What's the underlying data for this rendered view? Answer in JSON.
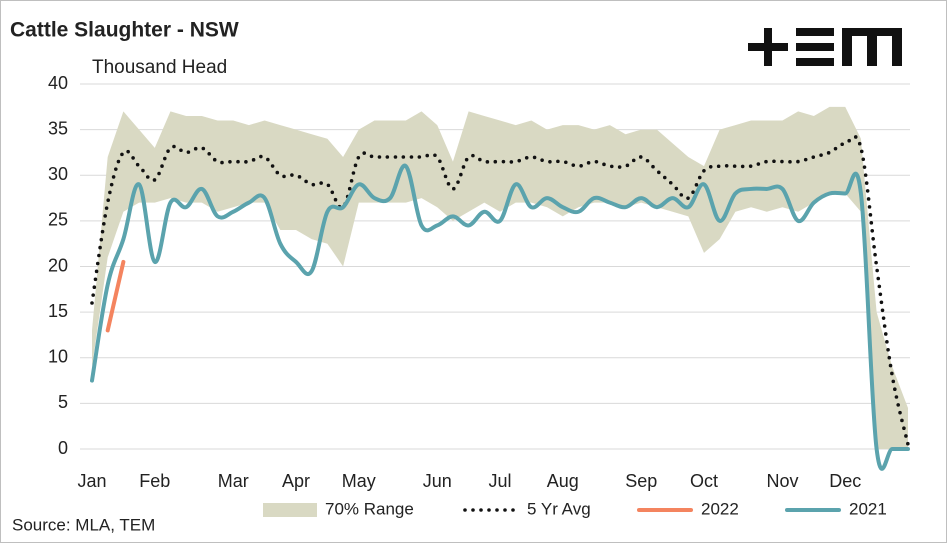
{
  "chart_data": {
    "type": "line",
    "title": "Cattle Slaughter - NSW",
    "y_label": "Thousand Head",
    "source": "Source: MLA, TEM",
    "categories": [
      "Jan",
      null,
      null,
      null,
      "Feb",
      null,
      null,
      null,
      null,
      "Mar",
      null,
      null,
      null,
      "Apr",
      null,
      null,
      null,
      "May",
      null,
      null,
      null,
      null,
      "Jun",
      null,
      null,
      null,
      "Jul",
      null,
      null,
      null,
      "Aug",
      null,
      null,
      null,
      null,
      "Sep",
      null,
      null,
      null,
      "Oct",
      null,
      null,
      null,
      null,
      "Nov",
      null,
      null,
      null,
      "Dec",
      null,
      null,
      null,
      null
    ],
    "ylim": [
      0,
      40
    ],
    "yticks": [
      0,
      5,
      10,
      15,
      20,
      25,
      30,
      35,
      40
    ],
    "grid": true,
    "series": [
      {
        "name": "70% Range",
        "type": "range",
        "color": "#d9d9c3",
        "upper": [
          13,
          32,
          37,
          35,
          33,
          37,
          36.5,
          36.5,
          36,
          36,
          35.5,
          36,
          35.5,
          35,
          34.5,
          34,
          32,
          35,
          36,
          36,
          36,
          37,
          35.5,
          31.5,
          37,
          36.5,
          36,
          35.5,
          36,
          35,
          35.5,
          35.5,
          35,
          35.5,
          34.5,
          35,
          35,
          33.5,
          32,
          31,
          35,
          35.5,
          36,
          36,
          36,
          37,
          36.5,
          37.5,
          37.5,
          34,
          15,
          9,
          4.5
        ],
        "lower": [
          9,
          21,
          26,
          27,
          27,
          27.5,
          27,
          27,
          26,
          26.5,
          27,
          27,
          24,
          24,
          23,
          22.5,
          20,
          27,
          27,
          27,
          27,
          27.5,
          26.5,
          25,
          26,
          27,
          26,
          27,
          27,
          26.5,
          25.5,
          26.5,
          27,
          27,
          26.5,
          27,
          26.5,
          26,
          25.5,
          21.5,
          23,
          26,
          26.5,
          26,
          26.5,
          26,
          27,
          28,
          28,
          26,
          0,
          0,
          0
        ]
      },
      {
        "name": "5 Yr Avg",
        "type": "dotted",
        "color": "#111111",
        "values": [
          16,
          27,
          32.5,
          31,
          29.5,
          33,
          32.5,
          33,
          31.5,
          31.5,
          31.5,
          32,
          30,
          30,
          29,
          29,
          26.5,
          32,
          32,
          32,
          32,
          32,
          32,
          28.5,
          32,
          31.5,
          31.5,
          31.5,
          32,
          31.5,
          31.5,
          31,
          31.5,
          31,
          31,
          32,
          30.5,
          29,
          27.5,
          30.5,
          31,
          31,
          31,
          31.5,
          31.5,
          31.5,
          32,
          32.5,
          33.5,
          33,
          20,
          8,
          0.5
        ]
      },
      {
        "name": "2022",
        "type": "solid",
        "color": "#f4845f",
        "values": [
          null,
          13,
          20.5,
          null,
          null,
          null,
          null,
          null,
          null,
          null,
          null,
          null,
          null,
          null,
          null,
          null,
          null,
          null,
          null,
          null,
          null,
          null,
          null,
          null,
          null,
          null,
          null,
          null,
          null,
          null,
          null,
          null,
          null,
          null,
          null,
          null,
          null,
          null,
          null,
          null,
          null,
          null,
          null,
          null,
          null,
          null,
          null,
          null,
          null,
          null,
          null,
          null,
          null
        ]
      },
      {
        "name": "2021",
        "type": "solid",
        "color": "#5ba3ad",
        "values": [
          7.5,
          18,
          23,
          29,
          20.5,
          27,
          26.5,
          28.5,
          25.5,
          26,
          27,
          27.5,
          22.5,
          20.5,
          19.5,
          26,
          26.5,
          29,
          27.5,
          27.5,
          31,
          24.5,
          24.5,
          25.5,
          24.5,
          26,
          25,
          29,
          26.5,
          27.5,
          26.5,
          26,
          27.5,
          27,
          26.5,
          27.5,
          26.5,
          27.5,
          26.5,
          29,
          25,
          28,
          28.5,
          28.5,
          28.5,
          25,
          27,
          28,
          28,
          28,
          0,
          0,
          0
        ]
      }
    ]
  }
}
